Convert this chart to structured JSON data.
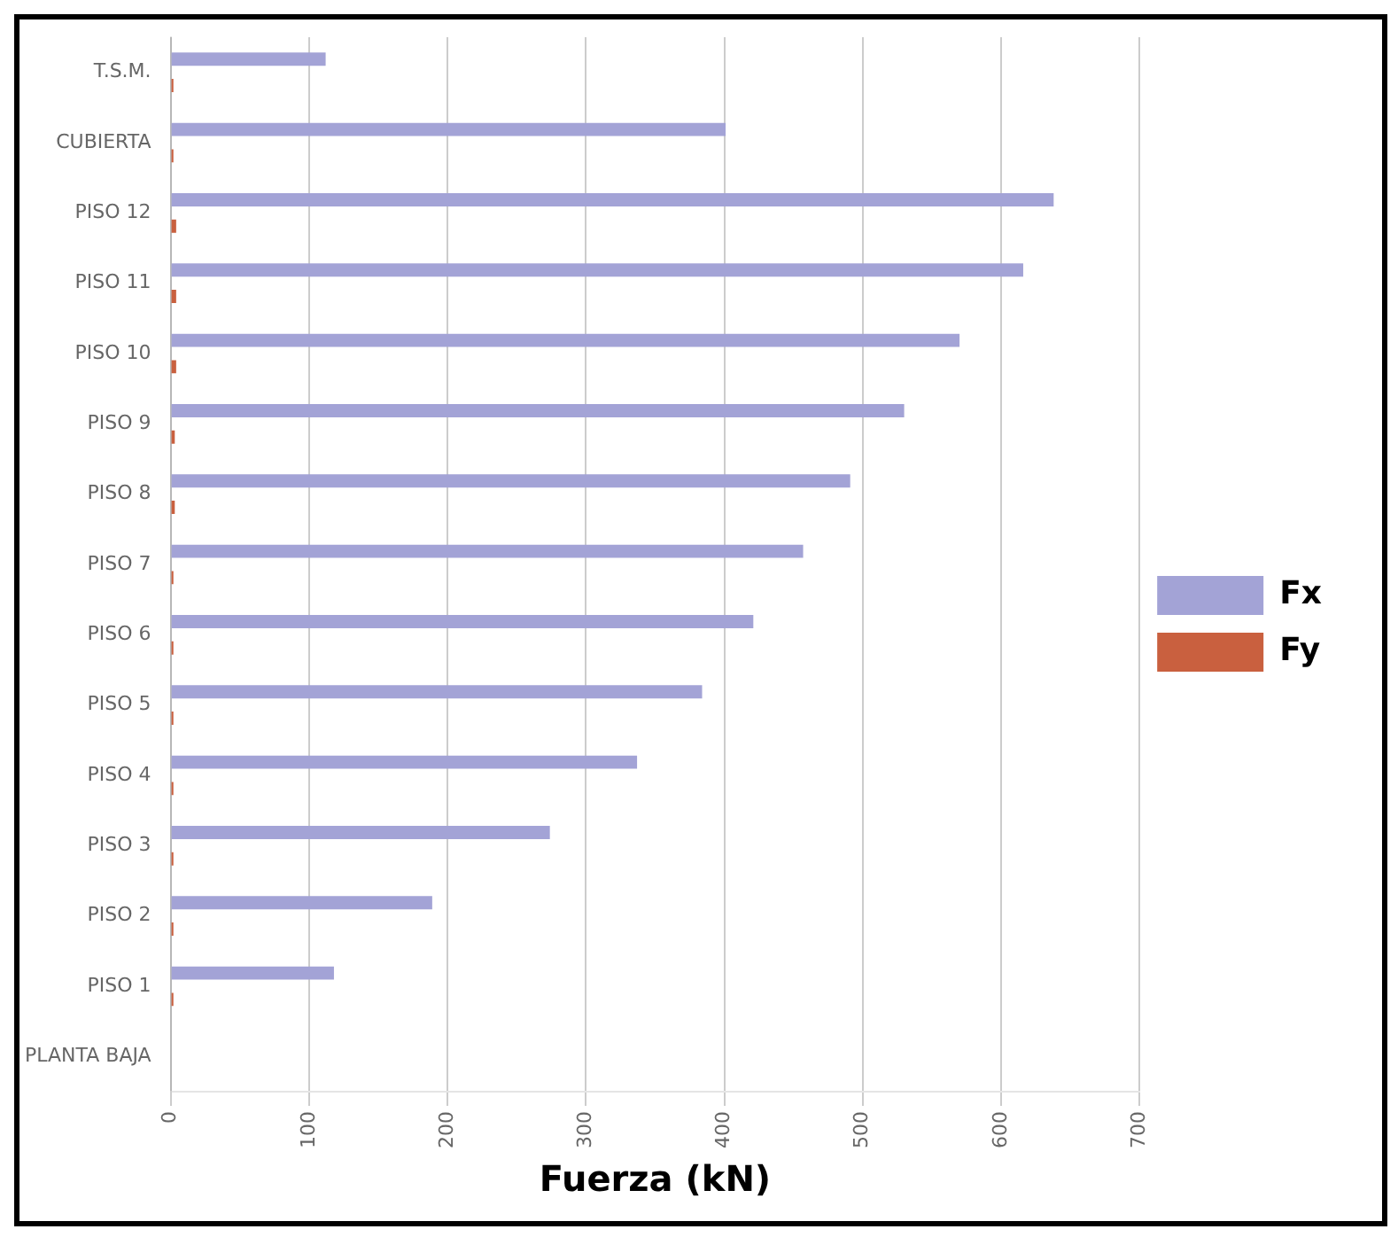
{
  "chart_data": {
    "type": "bar",
    "orientation": "horizontal",
    "xlabel": "Fuerza (kN)",
    "categories": [
      "T.S.M.",
      "CUBIERTA",
      "PISO 12",
      "PISO 11",
      "PISO 10",
      "PISO 9",
      "PISO 8",
      "PISO 7",
      "PISO 6",
      "PISO 5",
      "PISO 4",
      "PISO 3",
      "PISO 2",
      "PISO 1",
      "PLANTA BAJA"
    ],
    "series": [
      {
        "name": "Fx",
        "color": "#a3a3d6",
        "values": [
          112,
          401,
          638,
          616,
          570,
          530,
          491,
          457,
          421,
          384,
          337,
          274,
          189,
          118,
          0
        ]
      },
      {
        "name": "Fy",
        "color": "#c9603f",
        "values": [
          2,
          2,
          4,
          4,
          4,
          3,
          3,
          2,
          2,
          2,
          2,
          2,
          2,
          2,
          0
        ]
      }
    ],
    "xlim": [
      0,
      700
    ],
    "xticks": [
      0,
      100,
      200,
      300,
      400,
      500,
      600,
      700
    ],
    "grid": "x",
    "legend": "right"
  }
}
